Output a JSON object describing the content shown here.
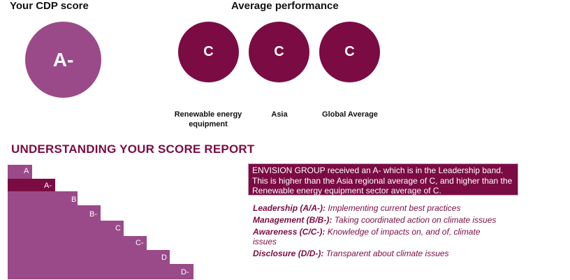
{
  "score": {
    "heading": "Your CDP score",
    "value": "A-"
  },
  "average": {
    "heading": "Average performance",
    "items": [
      {
        "score": "C",
        "label": "Renewable energy equipment"
      },
      {
        "score": "C",
        "label": "Asia"
      },
      {
        "score": "C",
        "label": "Global Average"
      }
    ]
  },
  "report": {
    "title": "UNDERSTANDING YOUR SCORE REPORT",
    "steps": [
      "A",
      "A-",
      "B",
      "B-",
      "C",
      "C-",
      "D",
      "D-"
    ],
    "highlighted_step": "A-",
    "summary": "ENVISION GROUP received an A- which is in the Leadership band. This is higher than the Asia regional average of C, and higher than the Renewable energy equipment sector average of C.",
    "bands": [
      {
        "name": "Leadership (A/A-):",
        "desc": "Implementing current best practices"
      },
      {
        "name": "Management (B/B-):",
        "desc": "Taking coordinated action on climate issues"
      },
      {
        "name": "Awareness (C/C-):",
        "desc": "Knowledge of impacts on, and of, climate issues"
      },
      {
        "name": "Disclosure (D/D-):",
        "desc": "Transparent about climate issues"
      }
    ]
  },
  "colors": {
    "primary": "#7b0c43",
    "secondary": "#9a4a89",
    "highlight_step": "#7b0c43"
  }
}
